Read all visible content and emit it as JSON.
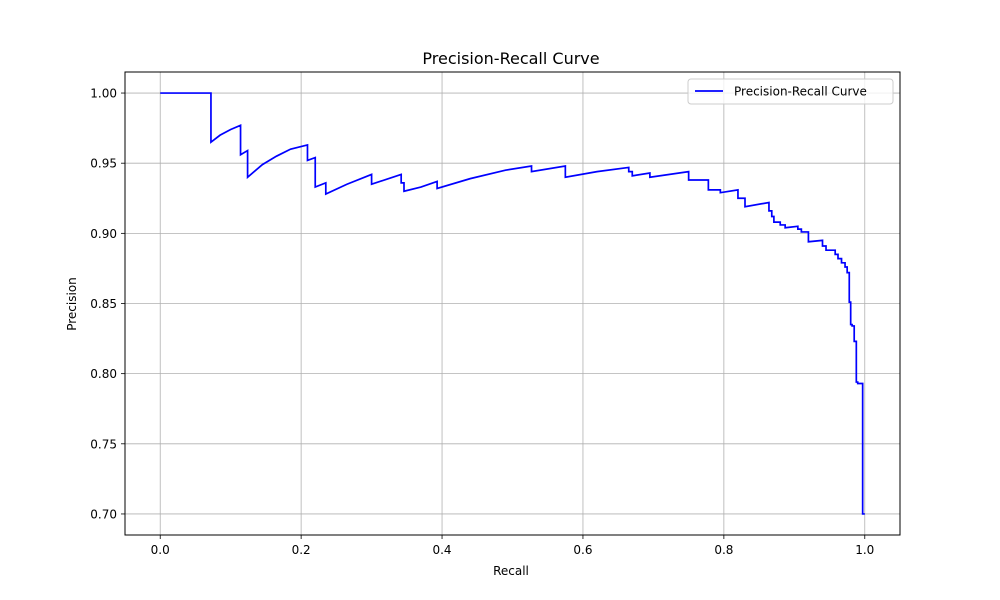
{
  "chart_data": {
    "type": "line",
    "title": "Precision-Recall Curve",
    "xlabel": "Recall",
    "ylabel": "Precision",
    "xlim": [
      -0.05,
      1.05
    ],
    "ylim": [
      0.685,
      1.015
    ],
    "xticks": [
      "0.0",
      "0.2",
      "0.4",
      "0.6",
      "0.8",
      "1.0"
    ],
    "xtick_values": [
      0.0,
      0.2,
      0.4,
      0.6,
      0.8,
      1.0
    ],
    "yticks": [
      "0.70",
      "0.75",
      "0.80",
      "0.85",
      "0.90",
      "0.95",
      "1.00"
    ],
    "ytick_values": [
      0.7,
      0.75,
      0.8,
      0.85,
      0.9,
      0.95,
      1.0
    ],
    "grid": true,
    "legend": {
      "position": "top-right"
    },
    "series": [
      {
        "name": "Precision-Recall Curve",
        "color": "#0000ff",
        "x": [
          0.0,
          0.072,
          0.072,
          0.085,
          0.1,
          0.114,
          0.114,
          0.124,
          0.124,
          0.145,
          0.165,
          0.185,
          0.209,
          0.209,
          0.22,
          0.22,
          0.235,
          0.235,
          0.265,
          0.3,
          0.3,
          0.342,
          0.342,
          0.346,
          0.346,
          0.37,
          0.393,
          0.393,
          0.44,
          0.49,
          0.527,
          0.527,
          0.575,
          0.575,
          0.62,
          0.665,
          0.665,
          0.67,
          0.67,
          0.695,
          0.695,
          0.75,
          0.75,
          0.778,
          0.778,
          0.795,
          0.795,
          0.82,
          0.82,
          0.83,
          0.83,
          0.864,
          0.864,
          0.868,
          0.868,
          0.871,
          0.871,
          0.88,
          0.88,
          0.887,
          0.887,
          0.905,
          0.905,
          0.91,
          0.91,
          0.92,
          0.92,
          0.94,
          0.94,
          0.945,
          0.945,
          0.958,
          0.958,
          0.962,
          0.962,
          0.967,
          0.967,
          0.972,
          0.972,
          0.975,
          0.975,
          0.978,
          0.978,
          0.98,
          0.98,
          0.982,
          0.982,
          0.985,
          0.985,
          0.988,
          0.988,
          0.99,
          0.99,
          0.993,
          0.993,
          0.997,
          0.997,
          1.0
        ],
        "y": [
          1.0,
          1.0,
          0.965,
          0.97,
          0.974,
          0.977,
          0.956,
          0.959,
          0.94,
          0.949,
          0.955,
          0.96,
          0.963,
          0.952,
          0.954,
          0.933,
          0.936,
          0.928,
          0.935,
          0.942,
          0.935,
          0.942,
          0.936,
          0.936,
          0.93,
          0.933,
          0.937,
          0.932,
          0.939,
          0.945,
          0.948,
          0.944,
          0.948,
          0.94,
          0.944,
          0.947,
          0.944,
          0.944,
          0.941,
          0.943,
          0.94,
          0.944,
          0.938,
          0.938,
          0.931,
          0.931,
          0.929,
          0.931,
          0.925,
          0.925,
          0.919,
          0.922,
          0.916,
          0.916,
          0.912,
          0.912,
          0.908,
          0.908,
          0.906,
          0.906,
          0.904,
          0.905,
          0.903,
          0.903,
          0.901,
          0.901,
          0.894,
          0.895,
          0.891,
          0.891,
          0.888,
          0.888,
          0.885,
          0.885,
          0.882,
          0.882,
          0.879,
          0.879,
          0.876,
          0.876,
          0.872,
          0.872,
          0.851,
          0.851,
          0.835,
          0.835,
          0.834,
          0.834,
          0.823,
          0.823,
          0.794,
          0.794,
          0.793,
          0.793,
          0.793,
          0.793,
          0.7,
          0.7
        ]
      }
    ]
  }
}
